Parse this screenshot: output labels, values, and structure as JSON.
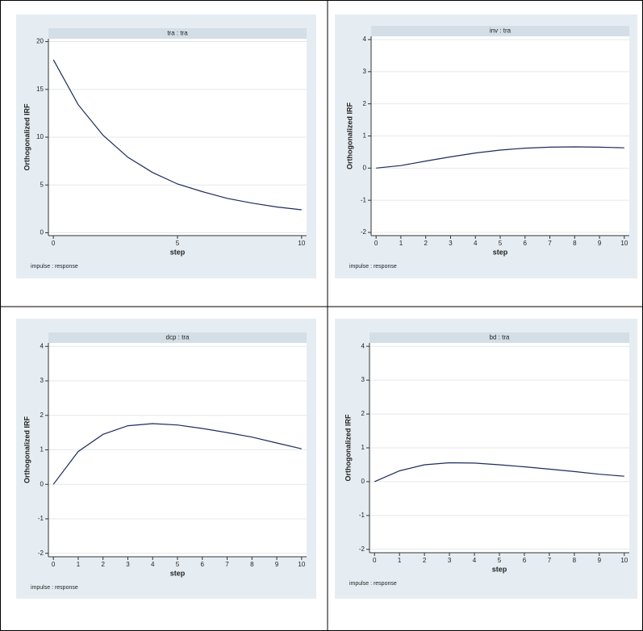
{
  "chart_data": [
    {
      "type": "line",
      "title": "tra : tra",
      "x": [
        0,
        1,
        2,
        3,
        4,
        5,
        6,
        7,
        8,
        9,
        10
      ],
      "values": [
        18.1,
        13.4,
        10.2,
        7.9,
        6.3,
        5.1,
        4.3,
        3.6,
        3.1,
        2.7,
        2.4
      ],
      "color": "#1c2b5c",
      "xlim": [
        -0.2,
        10.2
      ],
      "ylim": [
        -0.3,
        20.3
      ],
      "xticks": [
        0,
        5,
        10
      ],
      "yticks": [
        0,
        5,
        10,
        15,
        20
      ],
      "xlabel": "step",
      "ylabel": "Orthogonalized IRF",
      "note": "impulse : response",
      "grid": true
    },
    {
      "type": "line",
      "title": "inv : tra",
      "x": [
        0,
        1,
        2,
        3,
        4,
        5,
        6,
        7,
        8,
        9,
        10
      ],
      "values": [
        0,
        0.08,
        0.22,
        0.35,
        0.47,
        0.56,
        0.62,
        0.65,
        0.66,
        0.65,
        0.63
      ],
      "color": "#1c2b5c",
      "xlim": [
        -0.2,
        10.2
      ],
      "ylim": [
        -2.1,
        4.1
      ],
      "xticks": [
        0,
        1,
        2,
        3,
        4,
        5,
        6,
        7,
        8,
        9,
        10
      ],
      "yticks": [
        -2,
        -1,
        0,
        1,
        2,
        3,
        4
      ],
      "xlabel": "step",
      "ylabel": "Orthogonalized IRF",
      "note": "impulse : response",
      "grid": true
    },
    {
      "type": "line",
      "title": "dcp : tra",
      "x": [
        0,
        1,
        2,
        3,
        4,
        5,
        6,
        7,
        8,
        9,
        10
      ],
      "values": [
        0,
        0.95,
        1.45,
        1.7,
        1.76,
        1.72,
        1.62,
        1.5,
        1.37,
        1.2,
        1.03
      ],
      "color": "#1c2b5c",
      "xlim": [
        -0.2,
        10.2
      ],
      "ylim": [
        -2.1,
        4.1
      ],
      "xticks": [
        0,
        1,
        2,
        3,
        4,
        5,
        6,
        7,
        8,
        9,
        10
      ],
      "yticks": [
        -2,
        -1,
        0,
        1,
        2,
        3,
        4
      ],
      "xlabel": "step",
      "ylabel": "Orthogonalized IRF",
      "note": "impulse : response",
      "grid": true
    },
    {
      "type": "line",
      "title": "bd : tra",
      "x": [
        0,
        1,
        2,
        3,
        4,
        5,
        6,
        7,
        8,
        9,
        10
      ],
      "values": [
        0,
        0.32,
        0.5,
        0.56,
        0.55,
        0.5,
        0.44,
        0.37,
        0.3,
        0.22,
        0.16
      ],
      "color": "#1c2b5c",
      "xlim": [
        -0.2,
        10.2
      ],
      "ylim": [
        -2.1,
        4.1
      ],
      "xticks": [
        0,
        1,
        2,
        3,
        4,
        5,
        6,
        7,
        8,
        9,
        10
      ],
      "yticks": [
        -2,
        -1,
        0,
        1,
        2,
        3,
        4
      ],
      "xlabel": "step",
      "ylabel": "Orthogonalized IRF",
      "note": "impulse : response",
      "grid": true
    }
  ]
}
